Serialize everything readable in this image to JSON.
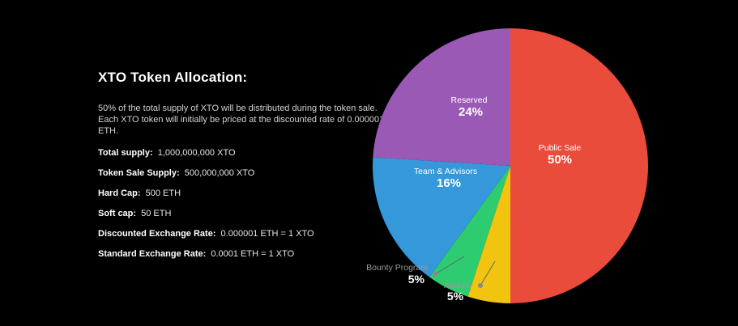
{
  "page": {
    "background": "#000000"
  },
  "left_panel": {
    "title": "XTO Token Allocation:",
    "description": "50% of the total supply of XTO will be distributed during the token sale. Each XTO token will initially be priced at the discounted rate of 0.000001 ETH.",
    "stats": [
      {
        "label": "Total supply:",
        "value": "1,000,000,000 XTO"
      },
      {
        "label": "Token Sale Supply:",
        "value": "500,000,000 XTO"
      },
      {
        "label": "Hard Cap:",
        "value": "500 ETH"
      },
      {
        "label": "Soft cap:",
        "value": "50 ETH"
      },
      {
        "label": "Discounted Exchange Rate:",
        "value": "0.000001 ETH = 1 XTO"
      },
      {
        "label": "Standard Exchange Rate:",
        "value": "0.0001 ETH = 1 XTO"
      }
    ]
  },
  "chart_data": {
    "type": "pie",
    "title": "XTO Token Allocation",
    "start_angle_deg": 0,
    "direction": "clockwise",
    "slices": [
      {
        "name": "Public Sale",
        "percent": 50,
        "color": "#ea4c3c",
        "label_position": "inside"
      },
      {
        "name": "Airdrop",
        "percent": 5,
        "color": "#f1c40f",
        "label_position": "outside"
      },
      {
        "name": "Bounty Program",
        "percent": 5,
        "color": "#2ecc71",
        "label_position": "outside"
      },
      {
        "name": "Team & Advisors",
        "percent": 16,
        "color": "#3498db",
        "label_position": "inside"
      },
      {
        "name": "Reserved",
        "percent": 24,
        "color": "#9b59b6",
        "label_position": "inside"
      }
    ],
    "inside_label_color": "#ffffff",
    "outside_label_color": "#9a9a9a",
    "leader_dot_color": "#8a8a8a"
  }
}
